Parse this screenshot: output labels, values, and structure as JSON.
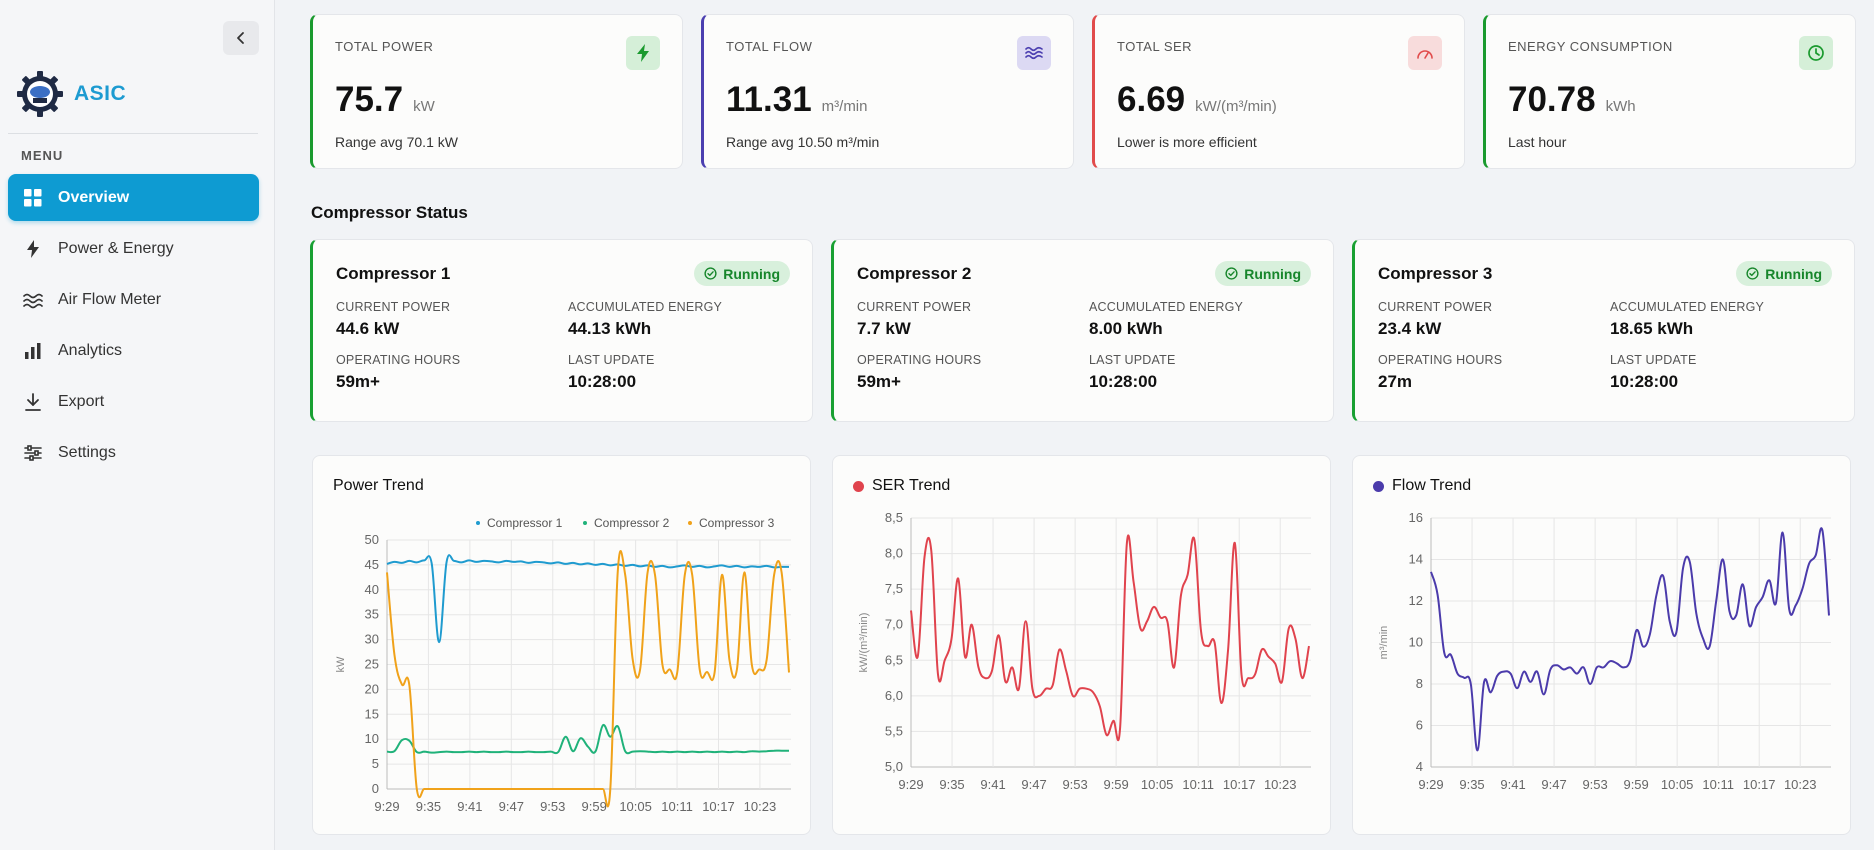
{
  "sidebar": {
    "brand": "ASIC",
    "menu_title": "MENU",
    "items": [
      {
        "label": "Overview"
      },
      {
        "label": "Power & Energy"
      },
      {
        "label": "Air Flow Meter"
      },
      {
        "label": "Analytics"
      },
      {
        "label": "Export"
      },
      {
        "label": "Settings"
      }
    ]
  },
  "kpis": [
    {
      "label": "TOTAL POWER",
      "value": "75.7",
      "unit": "kW",
      "sub": "Range avg 70.1 kW",
      "color": "#1a9a2e",
      "icon_bg": "#d5efd8",
      "icon": "bolt-icon"
    },
    {
      "label": "TOTAL FLOW",
      "value": "11.31",
      "unit": "m³/min",
      "sub": "Range avg 10.50 m³/min",
      "color": "#4b3fb0",
      "icon_bg": "#dcd9f3",
      "icon": "waves-icon"
    },
    {
      "label": "TOTAL SER",
      "value": "6.69",
      "unit": "kW/(m³/min)",
      "sub": "Lower is more efficient",
      "color": "#e14b4b",
      "icon_bg": "#f8dcdc",
      "icon": "gauge-icon"
    },
    {
      "label": "ENERGY CONSUMPTION",
      "value": "70.78",
      "unit": "kWh",
      "sub": "Last hour",
      "color": "#1a9a2e",
      "icon_bg": "#d5efd8",
      "icon": "clock-icon"
    }
  ],
  "compressor_section_title": "Compressor Status",
  "field_labels": {
    "power": "CURRENT POWER",
    "energy": "ACCUMULATED ENERGY",
    "hours": "OPERATING HOURS",
    "update": "LAST UPDATE"
  },
  "compressors": [
    {
      "name": "Compressor 1",
      "status": "Running",
      "power": "44.6 kW",
      "energy": "44.13 kWh",
      "hours": "59m+",
      "update": "10:28:00"
    },
    {
      "name": "Compressor 2",
      "status": "Running",
      "power": "7.7 kW",
      "energy": "8.00 kWh",
      "hours": "59m+",
      "update": "10:28:00"
    },
    {
      "name": "Compressor 3",
      "status": "Running",
      "power": "23.4 kW",
      "energy": "18.65 kWh",
      "hours": "27m",
      "update": "10:28:00"
    }
  ],
  "chart_data": [
    {
      "type": "line",
      "title": "Power Trend",
      "ylabel": "kW",
      "ylim": [
        0,
        50
      ],
      "yticks": [
        0,
        5,
        10,
        15,
        20,
        25,
        30,
        35,
        40,
        45,
        50
      ],
      "xticks": [
        "9:29",
        "9:35",
        "9:41",
        "9:47",
        "9:53",
        "9:59",
        "10:05",
        "10:11",
        "10:17",
        "10:23"
      ],
      "legend_position": "top-right",
      "series": [
        {
          "name": "Compressor 1",
          "color": "#1f9bcf",
          "values": [
            45.2,
            45.6,
            45.4,
            45.8,
            45.5,
            45.9,
            45.3,
            29.5,
            45.6,
            45.8,
            45.5,
            45.9,
            45.6,
            45.8,
            45.7,
            45.5,
            45.8,
            45.6,
            45.7,
            45.4,
            45.6,
            45.5,
            45.3,
            45.5,
            45.2,
            45.4,
            45.1,
            45.3,
            45.0,
            45.2,
            44.9,
            45.1,
            44.8,
            45.0,
            44.7,
            44.9,
            44.6,
            44.8,
            44.5,
            44.7,
            44.9,
            44.6,
            44.8,
            44.5,
            44.7,
            44.9,
            44.6,
            44.8,
            44.5,
            44.7,
            44.6,
            44.8,
            44.5,
            44.6,
            44.6
          ]
        },
        {
          "name": "Compressor 2",
          "color": "#20b27a",
          "values": [
            7.5,
            7.6,
            9.8,
            9.7,
            7.4,
            7.5,
            7.3,
            7.4,
            7.5,
            7.4,
            7.4,
            7.5,
            7.4,
            7.5,
            7.4,
            7.4,
            7.5,
            7.4,
            7.4,
            7.5,
            7.4,
            7.4,
            7.5,
            7.4,
            10.5,
            7.6,
            10.2,
            8.5,
            7.5,
            12.8,
            10.5,
            12.6,
            7.6,
            7.5,
            7.6,
            7.5,
            7.4,
            7.5,
            7.4,
            7.5,
            7.4,
            7.5,
            7.4,
            7.5,
            7.4,
            7.5,
            7.4,
            7.5,
            7.4,
            7.6,
            7.5,
            7.6,
            7.7,
            7.7,
            7.7
          ]
        },
        {
          "name": "Compressor 3",
          "color": "#f0a21a",
          "values": [
            43.5,
            27,
            21,
            20.9,
            0,
            0,
            0,
            0,
            0,
            0,
            0,
            0,
            0,
            0,
            0,
            0,
            0,
            0,
            0,
            0,
            0,
            0,
            0,
            0,
            0,
            0,
            0,
            0,
            0,
            0,
            0,
            43.8,
            43,
            26,
            24,
            43.5,
            43,
            25,
            24,
            23.5,
            43,
            43,
            24,
            23.5,
            23.4,
            43,
            26,
            24,
            43.5,
            25,
            24,
            26,
            43,
            43.5,
            23.4
          ]
        }
      ]
    },
    {
      "type": "line",
      "title": "SER Trend",
      "ylabel": "kW/(m³/min)",
      "ylim": [
        5.0,
        8.5
      ],
      "yticks": [
        "5,0",
        "5,5",
        "6,0",
        "6,5",
        "7,0",
        "7,5",
        "8,0",
        "8,5"
      ],
      "xticks": [
        "9:29",
        "9:35",
        "9:41",
        "9:47",
        "9:53",
        "9:59",
        "10:05",
        "10:11",
        "10:17",
        "10:23"
      ],
      "series": [
        {
          "name": "SER",
          "color": "#e0434d",
          "values": [
            7.2,
            6.55,
            7.95,
            8.05,
            6.3,
            6.5,
            6.8,
            7.65,
            6.55,
            7.0,
            6.4,
            6.25,
            6.35,
            6.85,
            6.2,
            6.4,
            6.1,
            7.05,
            6.1,
            6.0,
            6.1,
            6.15,
            6.65,
            6.35,
            6.0,
            6.1,
            6.1,
            6.05,
            5.85,
            5.45,
            5.65,
            5.55,
            8.15,
            7.6,
            6.95,
            7.05,
            7.25,
            7.1,
            7.05,
            6.4,
            7.4,
            7.7,
            8.2,
            6.9,
            6.7,
            6.75,
            5.9,
            6.65,
            8.15,
            6.3,
            6.25,
            6.3,
            6.65,
            6.55,
            6.45,
            6.2,
            6.95,
            6.8,
            6.25,
            6.7
          ]
        }
      ]
    },
    {
      "type": "line",
      "title": "Flow Trend",
      "ylabel": "m³/min",
      "ylim": [
        4,
        16
      ],
      "yticks": [
        4,
        6,
        8,
        10,
        12,
        14,
        16
      ],
      "xticks": [
        "9:29",
        "9:35",
        "9:41",
        "9:47",
        "9:53",
        "9:59",
        "10:05",
        "10:11",
        "10:17",
        "10:23"
      ],
      "series": [
        {
          "name": "Flow",
          "color": "#4b3bab",
          "values": [
            13.4,
            12.3,
            9.5,
            9.4,
            8.5,
            8.3,
            8.0,
            4.8,
            8.1,
            7.6,
            8.4,
            8.6,
            8.5,
            7.8,
            8.6,
            8.1,
            8.6,
            7.5,
            8.7,
            8.9,
            8.7,
            8.8,
            8.5,
            8.8,
            8.0,
            8.8,
            8.8,
            9.1,
            9.0,
            8.8,
            9.1,
            10.6,
            9.8,
            10.4,
            12.3,
            13.2,
            11.0,
            10.5,
            13.6,
            13.9,
            11.4,
            10.2,
            9.8,
            12.0,
            14.0,
            11.5,
            11.3,
            12.8,
            10.8,
            11.7,
            12.2,
            13.0,
            11.9,
            15.3,
            11.6,
            11.8,
            12.6,
            13.8,
            14.2,
            15.4,
            11.3
          ]
        }
      ]
    }
  ]
}
